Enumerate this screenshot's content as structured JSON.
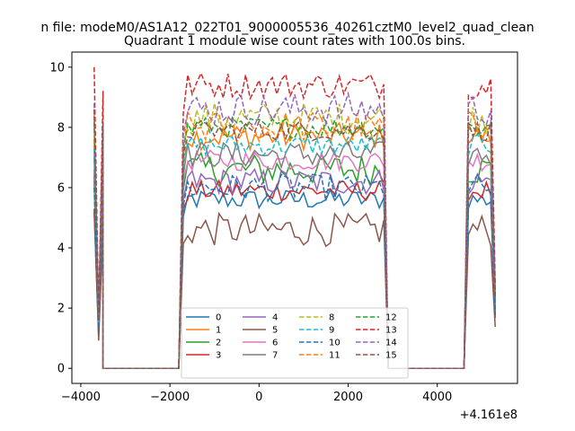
{
  "suptitle": "n file: modeM0/AS1A12_022T01_9000005536_40261cztM0_level2_quad_clean",
  "chart_data": {
    "type": "line",
    "title": "Quadrant 1 module wise count rates with 100.0s bins.",
    "xlabel": "",
    "ylabel": "",
    "x_offset_label": "+4.161e8",
    "xlim": [
      -4200,
      5800
    ],
    "ylim": [
      -0.5,
      10.5
    ],
    "xticks": [
      -4000,
      -2000,
      0,
      2000,
      4000
    ],
    "xtick_labels": [
      "−4000",
      "−2000",
      "0",
      "2000",
      "4000"
    ],
    "yticks": [
      0,
      2,
      4,
      6,
      8,
      10
    ],
    "ytick_labels": [
      "0",
      "2",
      "4",
      "6",
      "8",
      "10"
    ],
    "grid": false,
    "legend_position": "lower center",
    "x_segments": [
      {
        "start": -3700,
        "end": -3500,
        "level": "on"
      },
      {
        "start": -3500,
        "end": -1800,
        "level": "off"
      },
      {
        "start": -1700,
        "end": 2800,
        "level": "on"
      },
      {
        "start": 2900,
        "end": 4600,
        "level": "off"
      },
      {
        "start": 4700,
        "end": 5300,
        "level": "on"
      }
    ],
    "series": [
      {
        "name": "0",
        "color": "#1f77b4",
        "dash": "solid",
        "on_level": 5.6,
        "first_on": 6.4
      },
      {
        "name": "1",
        "color": "#ff7f0e",
        "dash": "solid",
        "on_level": 7.7,
        "first_on": 7.6
      },
      {
        "name": "2",
        "color": "#2ca02c",
        "dash": "solid",
        "on_level": 6.6,
        "first_on": 6.2
      },
      {
        "name": "3",
        "color": "#d62728",
        "dash": "solid",
        "on_level": 5.9,
        "first_on": 5.2
      },
      {
        "name": "4",
        "color": "#9467bd",
        "dash": "solid",
        "on_level": 6.2,
        "first_on": 6.6
      },
      {
        "name": "5",
        "color": "#8c564b",
        "dash": "solid",
        "on_level": 4.6,
        "first_on": 5.3
      },
      {
        "name": "6",
        "color": "#e377c2",
        "dash": "solid",
        "on_level": 6.9,
        "first_on": 7.2
      },
      {
        "name": "7",
        "color": "#7f7f7f",
        "dash": "solid",
        "on_level": 7.1,
        "first_on": 7.0
      },
      {
        "name": "8",
        "color": "#bcbd22",
        "dash": "dashed",
        "on_level": 8.3,
        "first_on": 8.0
      },
      {
        "name": "9",
        "color": "#17becf",
        "dash": "dashed",
        "on_level": 7.4,
        "first_on": 7.3
      },
      {
        "name": "10",
        "color": "#1f77b4",
        "dash": "dashed",
        "on_level": 6.0,
        "first_on": 6.0
      },
      {
        "name": "11",
        "color": "#ff7f0e",
        "dash": "dashed",
        "on_level": 8.0,
        "first_on": 8.4
      },
      {
        "name": "12",
        "color": "#2ca02c",
        "dash": "dashed",
        "on_level": 8.0,
        "first_on": 8.2
      },
      {
        "name": "13",
        "color": "#d62728",
        "dash": "dashed",
        "on_level": 9.4,
        "first_on": 10.0
      },
      {
        "name": "14",
        "color": "#9467bd",
        "dash": "dashed",
        "on_level": 8.6,
        "first_on": 8.8
      },
      {
        "name": "15",
        "color": "#8c564b",
        "dash": "dashed",
        "on_level": 7.9,
        "first_on": 8.6
      }
    ]
  }
}
